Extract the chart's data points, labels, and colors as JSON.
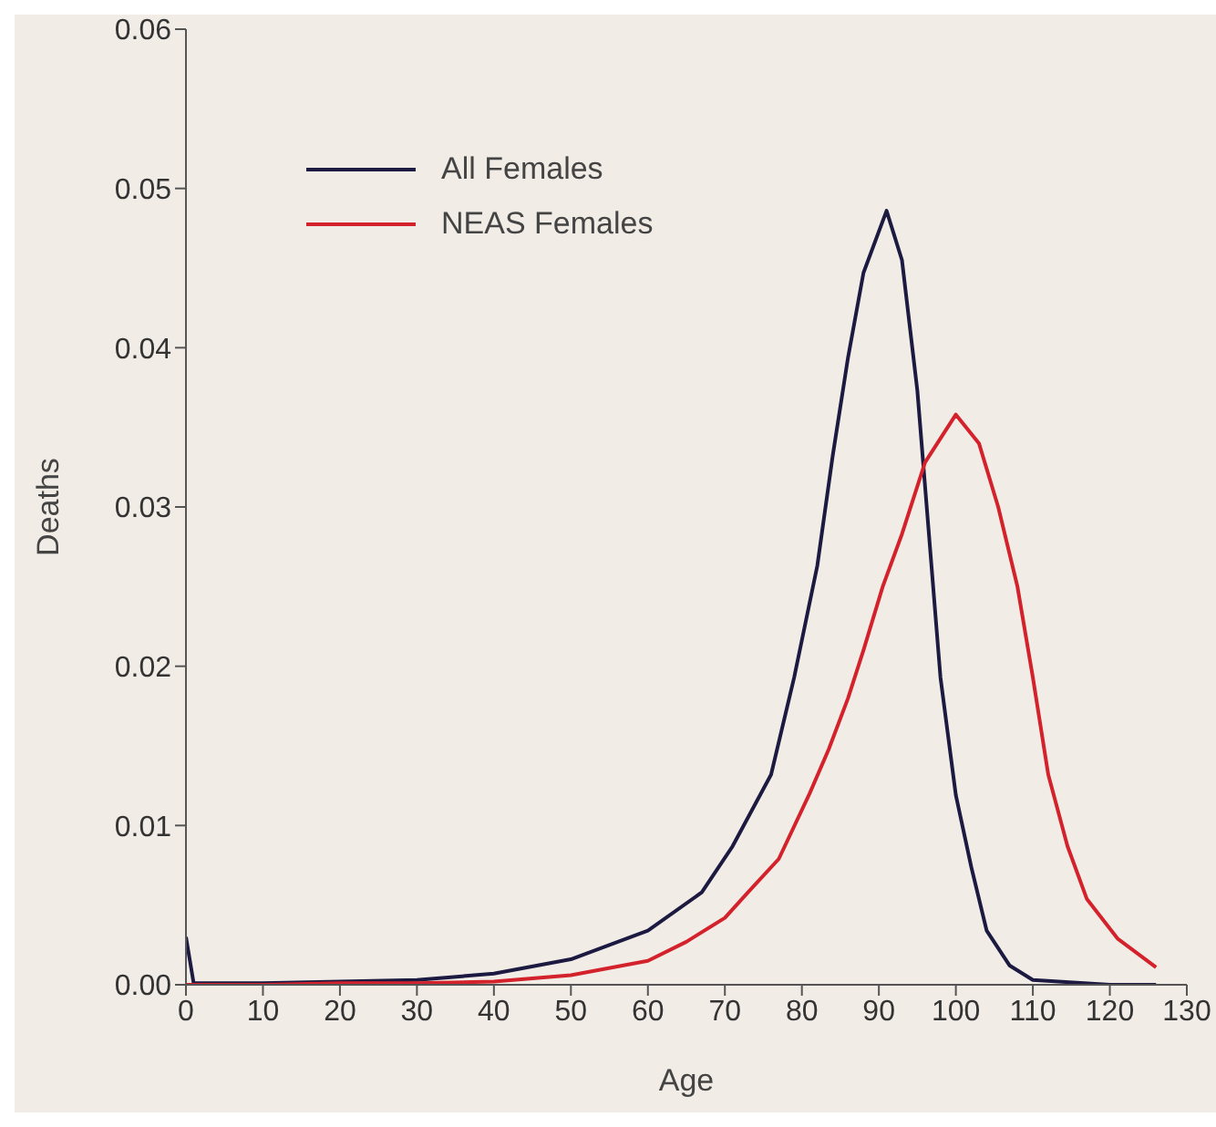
{
  "chart_data": {
    "type": "line",
    "xlabel": "Age",
    "ylabel": "Deaths",
    "xlim": [
      0,
      130
    ],
    "xticks": [
      0,
      10,
      20,
      30,
      40,
      50,
      60,
      70,
      80,
      90,
      100,
      110,
      120,
      130
    ],
    "ylim": [
      0,
      0.06
    ],
    "yticks": [
      {
        "value": 0,
        "label": "0.00"
      },
      0.01,
      0.02,
      0.03,
      0.04,
      0.05,
      0.06
    ],
    "legend": "top left",
    "marker": "none",
    "line_style": "solid",
    "series": [
      {
        "name": "All Females",
        "color": "#1c1a40",
        "x": [
          0,
          1,
          10,
          20,
          30,
          40,
          50,
          60,
          67,
          71,
          76,
          79,
          82,
          84,
          86,
          88,
          91,
          93,
          95,
          96.5,
          98,
          100,
          102,
          104,
          107,
          110,
          120,
          126
        ],
        "values": [
          0.003,
          0.0001,
          0.0001,
          0.0002,
          0.0003,
          0.0007,
          0.0016,
          0.0034,
          0.0058,
          0.0087,
          0.0132,
          0.0193,
          0.0263,
          0.0332,
          0.0394,
          0.0447,
          0.0486,
          0.0455,
          0.0373,
          0.0283,
          0.0193,
          0.0119,
          0.0074,
          0.0034,
          0.0012,
          0.0003,
          0,
          0
        ]
      },
      {
        "name": "NEAS Females",
        "color": "#d3222b",
        "x": [
          0,
          10,
          20,
          30,
          40,
          50,
          60,
          65,
          70,
          73,
          77,
          81,
          83.5,
          86,
          88,
          90.5,
          93,
          96,
          100,
          103,
          105.5,
          108,
          110,
          112,
          114.5,
          117,
          121,
          126
        ],
        "values": [
          0,
          0,
          0.0001,
          0.0001,
          0.0002,
          0.0006,
          0.0015,
          0.0027,
          0.0042,
          0.0058,
          0.0079,
          0.012,
          0.0148,
          0.018,
          0.021,
          0.025,
          0.0283,
          0.0328,
          0.0358,
          0.034,
          0.03,
          0.025,
          0.0193,
          0.0132,
          0.0087,
          0.0054,
          0.0029,
          0.0011
        ]
      }
    ]
  }
}
